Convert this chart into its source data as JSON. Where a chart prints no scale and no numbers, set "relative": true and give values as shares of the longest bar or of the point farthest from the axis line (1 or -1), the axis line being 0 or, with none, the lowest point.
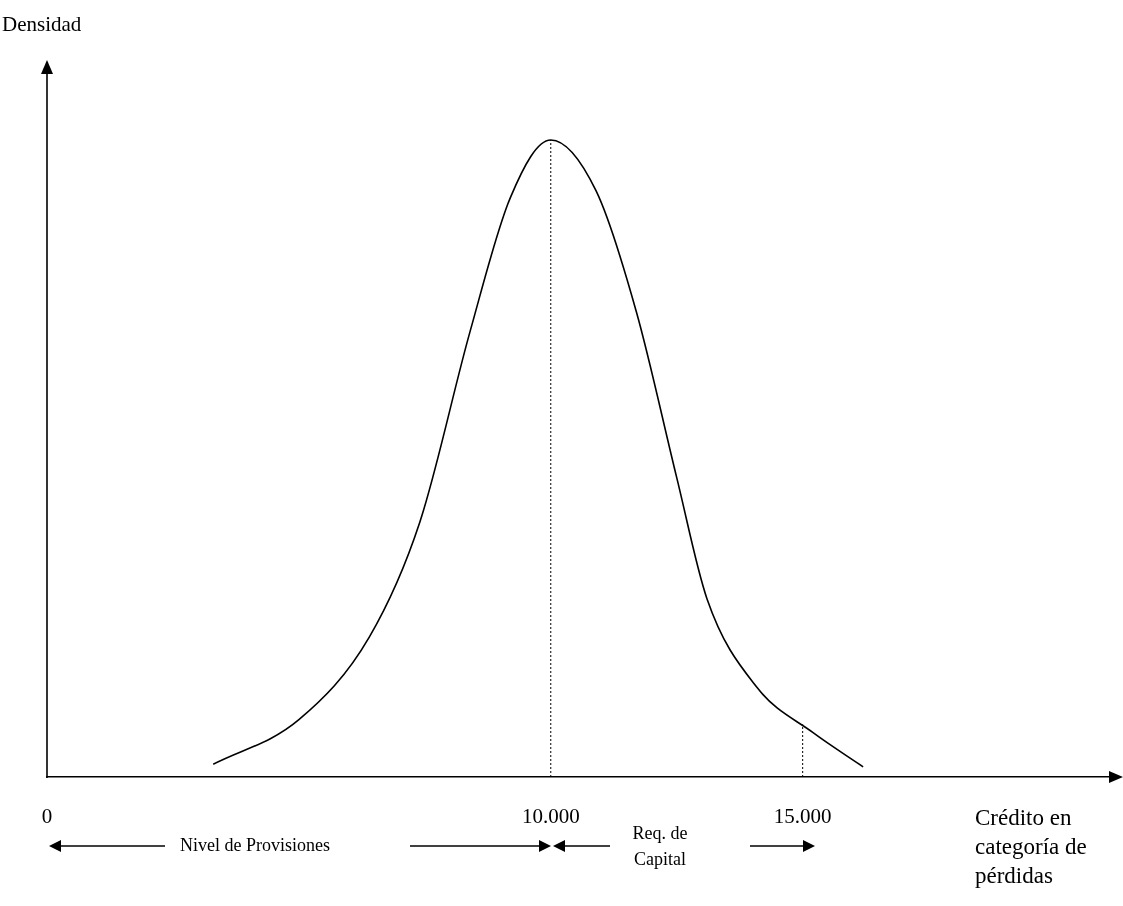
{
  "chart_data": {
    "type": "line",
    "relative": true,
    "xlabel": "Crédito en categoría de pérdidas",
    "ylabel": "Densidad",
    "x": [
      3300,
      5000,
      6400,
      7400,
      8400,
      9200,
      10000,
      10900,
      11700,
      12500,
      13100,
      14100,
      15200,
      16200
    ],
    "series": [
      {
        "color": "#000000",
        "values": [
          0.02,
          0.09,
          0.22,
          0.4,
          0.7,
          0.91,
          1.0,
          0.92,
          0.73,
          0.47,
          0.28,
          0.14,
          0.07,
          0.016
        ]
      }
    ],
    "xlim": [
      0,
      21200
    ],
    "xticks": [
      0,
      {
        "value": 10000,
        "label": "10.000"
      },
      {
        "value": 15000,
        "label": "15.000"
      }
    ],
    "ref_lines": [
      {
        "axis": "x",
        "value": 10000,
        "line_style": "dotted"
      },
      {
        "axis": "x",
        "value": 15000,
        "line_style": "dotted"
      }
    ],
    "annotations": [
      "Nivel de Provisiones",
      "Req. de Capital"
    ],
    "marker": "none",
    "grid": false,
    "legend": false
  }
}
